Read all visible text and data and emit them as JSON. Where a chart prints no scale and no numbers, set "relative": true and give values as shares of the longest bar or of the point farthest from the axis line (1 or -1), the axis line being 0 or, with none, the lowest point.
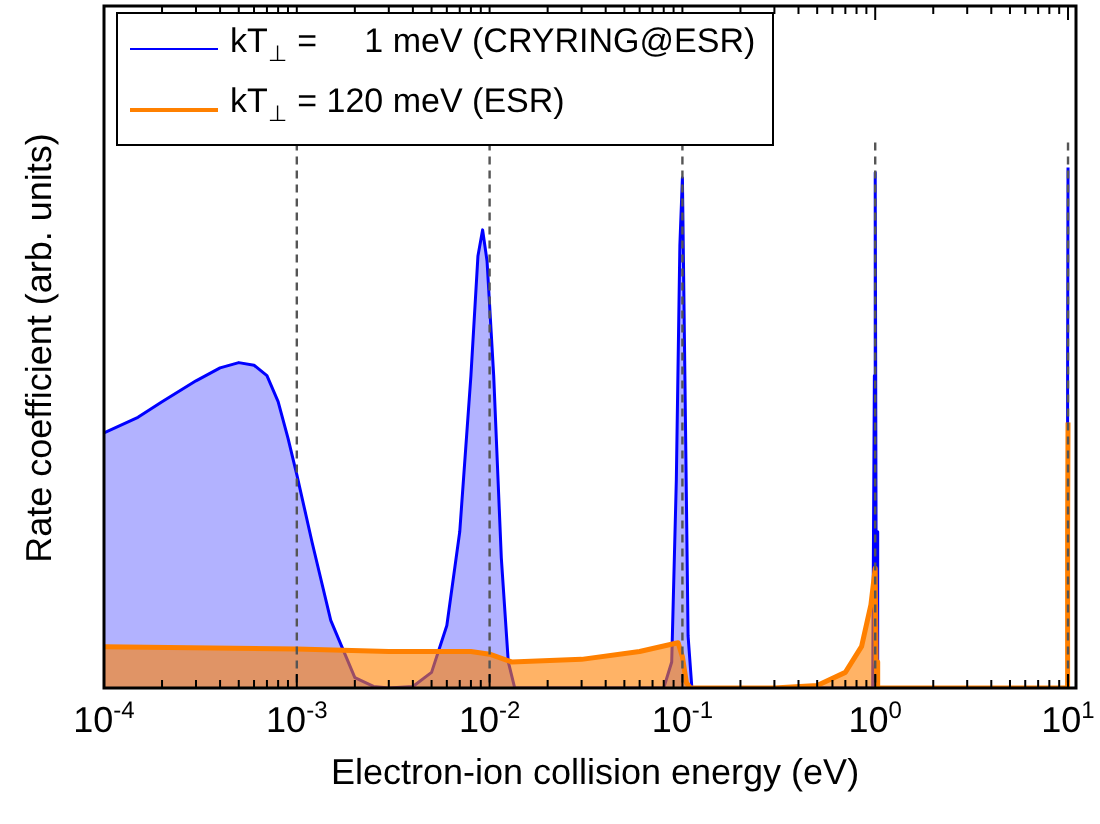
{
  "chart_data": {
    "type": "area",
    "relative": true,
    "xlabel": "Electron-ion collision energy (eV)",
    "ylabel": "Rate coefficient (arb. units)",
    "log": "x",
    "legend": "top left",
    "grid": false,
    "xlim": [
      0.0001,
      11
    ],
    "xticks": [
      {
        "value": 0.0001,
        "label": "10$^{-4}$"
      },
      {
        "value": 0.0002,
        "label": null
      },
      {
        "value": 0.0003,
        "label": null
      },
      {
        "value": 0.0004,
        "label": null
      },
      {
        "value": 0.0005,
        "label": null
      },
      {
        "value": 0.0006,
        "label": null
      },
      {
        "value": 0.0007,
        "label": null
      },
      {
        "value": 0.0008,
        "label": null
      },
      {
        "value": 0.0009,
        "label": null
      },
      {
        "value": 0.001,
        "label": "10$^{-3}$"
      },
      {
        "value": 0.002,
        "label": null
      },
      {
        "value": 0.003,
        "label": null
      },
      {
        "value": 0.004,
        "label": null
      },
      {
        "value": 0.005,
        "label": null
      },
      {
        "value": 0.006,
        "label": null
      },
      {
        "value": 0.007,
        "label": null
      },
      {
        "value": 0.008,
        "label": null
      },
      {
        "value": 0.009,
        "label": null
      },
      {
        "value": 0.01,
        "label": "10$^{-2}$"
      },
      {
        "value": 0.02,
        "label": null
      },
      {
        "value": 0.03,
        "label": null
      },
      {
        "value": 0.04,
        "label": null
      },
      {
        "value": 0.05,
        "label": null
      },
      {
        "value": 0.06,
        "label": null
      },
      {
        "value": 0.07,
        "label": null
      },
      {
        "value": 0.08,
        "label": null
      },
      {
        "value": 0.09,
        "label": null
      },
      {
        "value": 0.1,
        "label": "10$^{-1}$"
      },
      {
        "value": 0.2,
        "label": null
      },
      {
        "value": 0.3,
        "label": null
      },
      {
        "value": 0.4,
        "label": null
      },
      {
        "value": 0.5,
        "label": null
      },
      {
        "value": 0.6,
        "label": null
      },
      {
        "value": 0.7,
        "label": null
      },
      {
        "value": 0.8,
        "label": null
      },
      {
        "value": 0.9,
        "label": null
      },
      {
        "value": 1,
        "label": "10$^{0}$"
      },
      {
        "value": 2,
        "label": null
      },
      {
        "value": 3,
        "label": null
      },
      {
        "value": 4,
        "label": null
      },
      {
        "value": 5,
        "label": null
      },
      {
        "value": 6,
        "label": null
      },
      {
        "value": 7,
        "label": null
      },
      {
        "value": 8,
        "label": null
      },
      {
        "value": 9,
        "label": null
      },
      {
        "value": 10,
        "label": "10$^{1}$"
      }
    ],
    "series": [
      {
        "name": "kT$_{⊥}$ =     1 meV (CRYRING@ESR)",
        "color": "#0000ff",
        "x": [
          0.0001,
          0.00015,
          0.0002,
          0.0003,
          0.0004,
          0.0005,
          0.0006,
          0.0007,
          0.0008,
          0.0009,
          0.001,
          0.0012,
          0.0015,
          0.002,
          0.0025,
          0.003,
          0.004,
          0.005,
          0.006,
          0.007,
          0.008,
          0.0087,
          0.0092,
          0.0097,
          0.0105,
          0.0115,
          0.0125,
          0.0135,
          0.08,
          0.088,
          0.093,
          0.097,
          0.1,
          0.103,
          0.107,
          0.112,
          0.97,
          0.99,
          1,
          1.01,
          1.03,
          9.8,
          9.95,
          10
        ],
        "values": [
          0.49,
          0.52,
          0.55,
          0.59,
          0.615,
          0.625,
          0.62,
          0.6,
          0.55,
          0.48,
          0.41,
          0.28,
          0.13,
          0.02,
          0.003,
          0,
          0.003,
          0.03,
          0.12,
          0.3,
          0.6,
          0.83,
          0.88,
          0.82,
          0.6,
          0.25,
          0.05,
          0,
          0,
          0.05,
          0.4,
          0.85,
          0.98,
          0.6,
          0.1,
          0,
          0,
          0.6,
          0.99,
          0.3,
          0,
          0,
          0.6,
          1
        ]
      },
      {
        "name": "kT$_{⊥}$ = 120 meV (ESR)",
        "color": "#ff8000",
        "x": [
          0.0001,
          0.001,
          0.003,
          0.008,
          0.01,
          0.013,
          0.03,
          0.06,
          0.09,
          0.095,
          0.1,
          0.105,
          0.11,
          0.3,
          0.5,
          0.7,
          0.85,
          0.95,
          1,
          1.01,
          1.03,
          9.9,
          9.95,
          10
        ],
        "values": [
          0.079,
          0.075,
          0.07,
          0.07,
          0.065,
          0.05,
          0.055,
          0.07,
          0.085,
          0.087,
          0.06,
          0.01,
          0,
          0,
          0.005,
          0.03,
          0.08,
          0.16,
          0.23,
          0.05,
          0,
          0,
          0.3,
          0.51
        ]
      }
    ],
    "ref_lines": [
      {
        "axis": "x",
        "value": 0.001,
        "color": "#555555",
        "line_style": "dashed"
      },
      {
        "axis": "x",
        "value": 0.01,
        "color": "#555555",
        "line_style": "dashed"
      },
      {
        "axis": "x",
        "value": 0.1,
        "color": "#555555",
        "line_style": "dashed"
      },
      {
        "axis": "x",
        "value": 1,
        "color": "#555555",
        "line_style": "dashed"
      },
      {
        "axis": "x",
        "value": 10,
        "color": "#555555",
        "line_style": "dashed"
      }
    ]
  }
}
